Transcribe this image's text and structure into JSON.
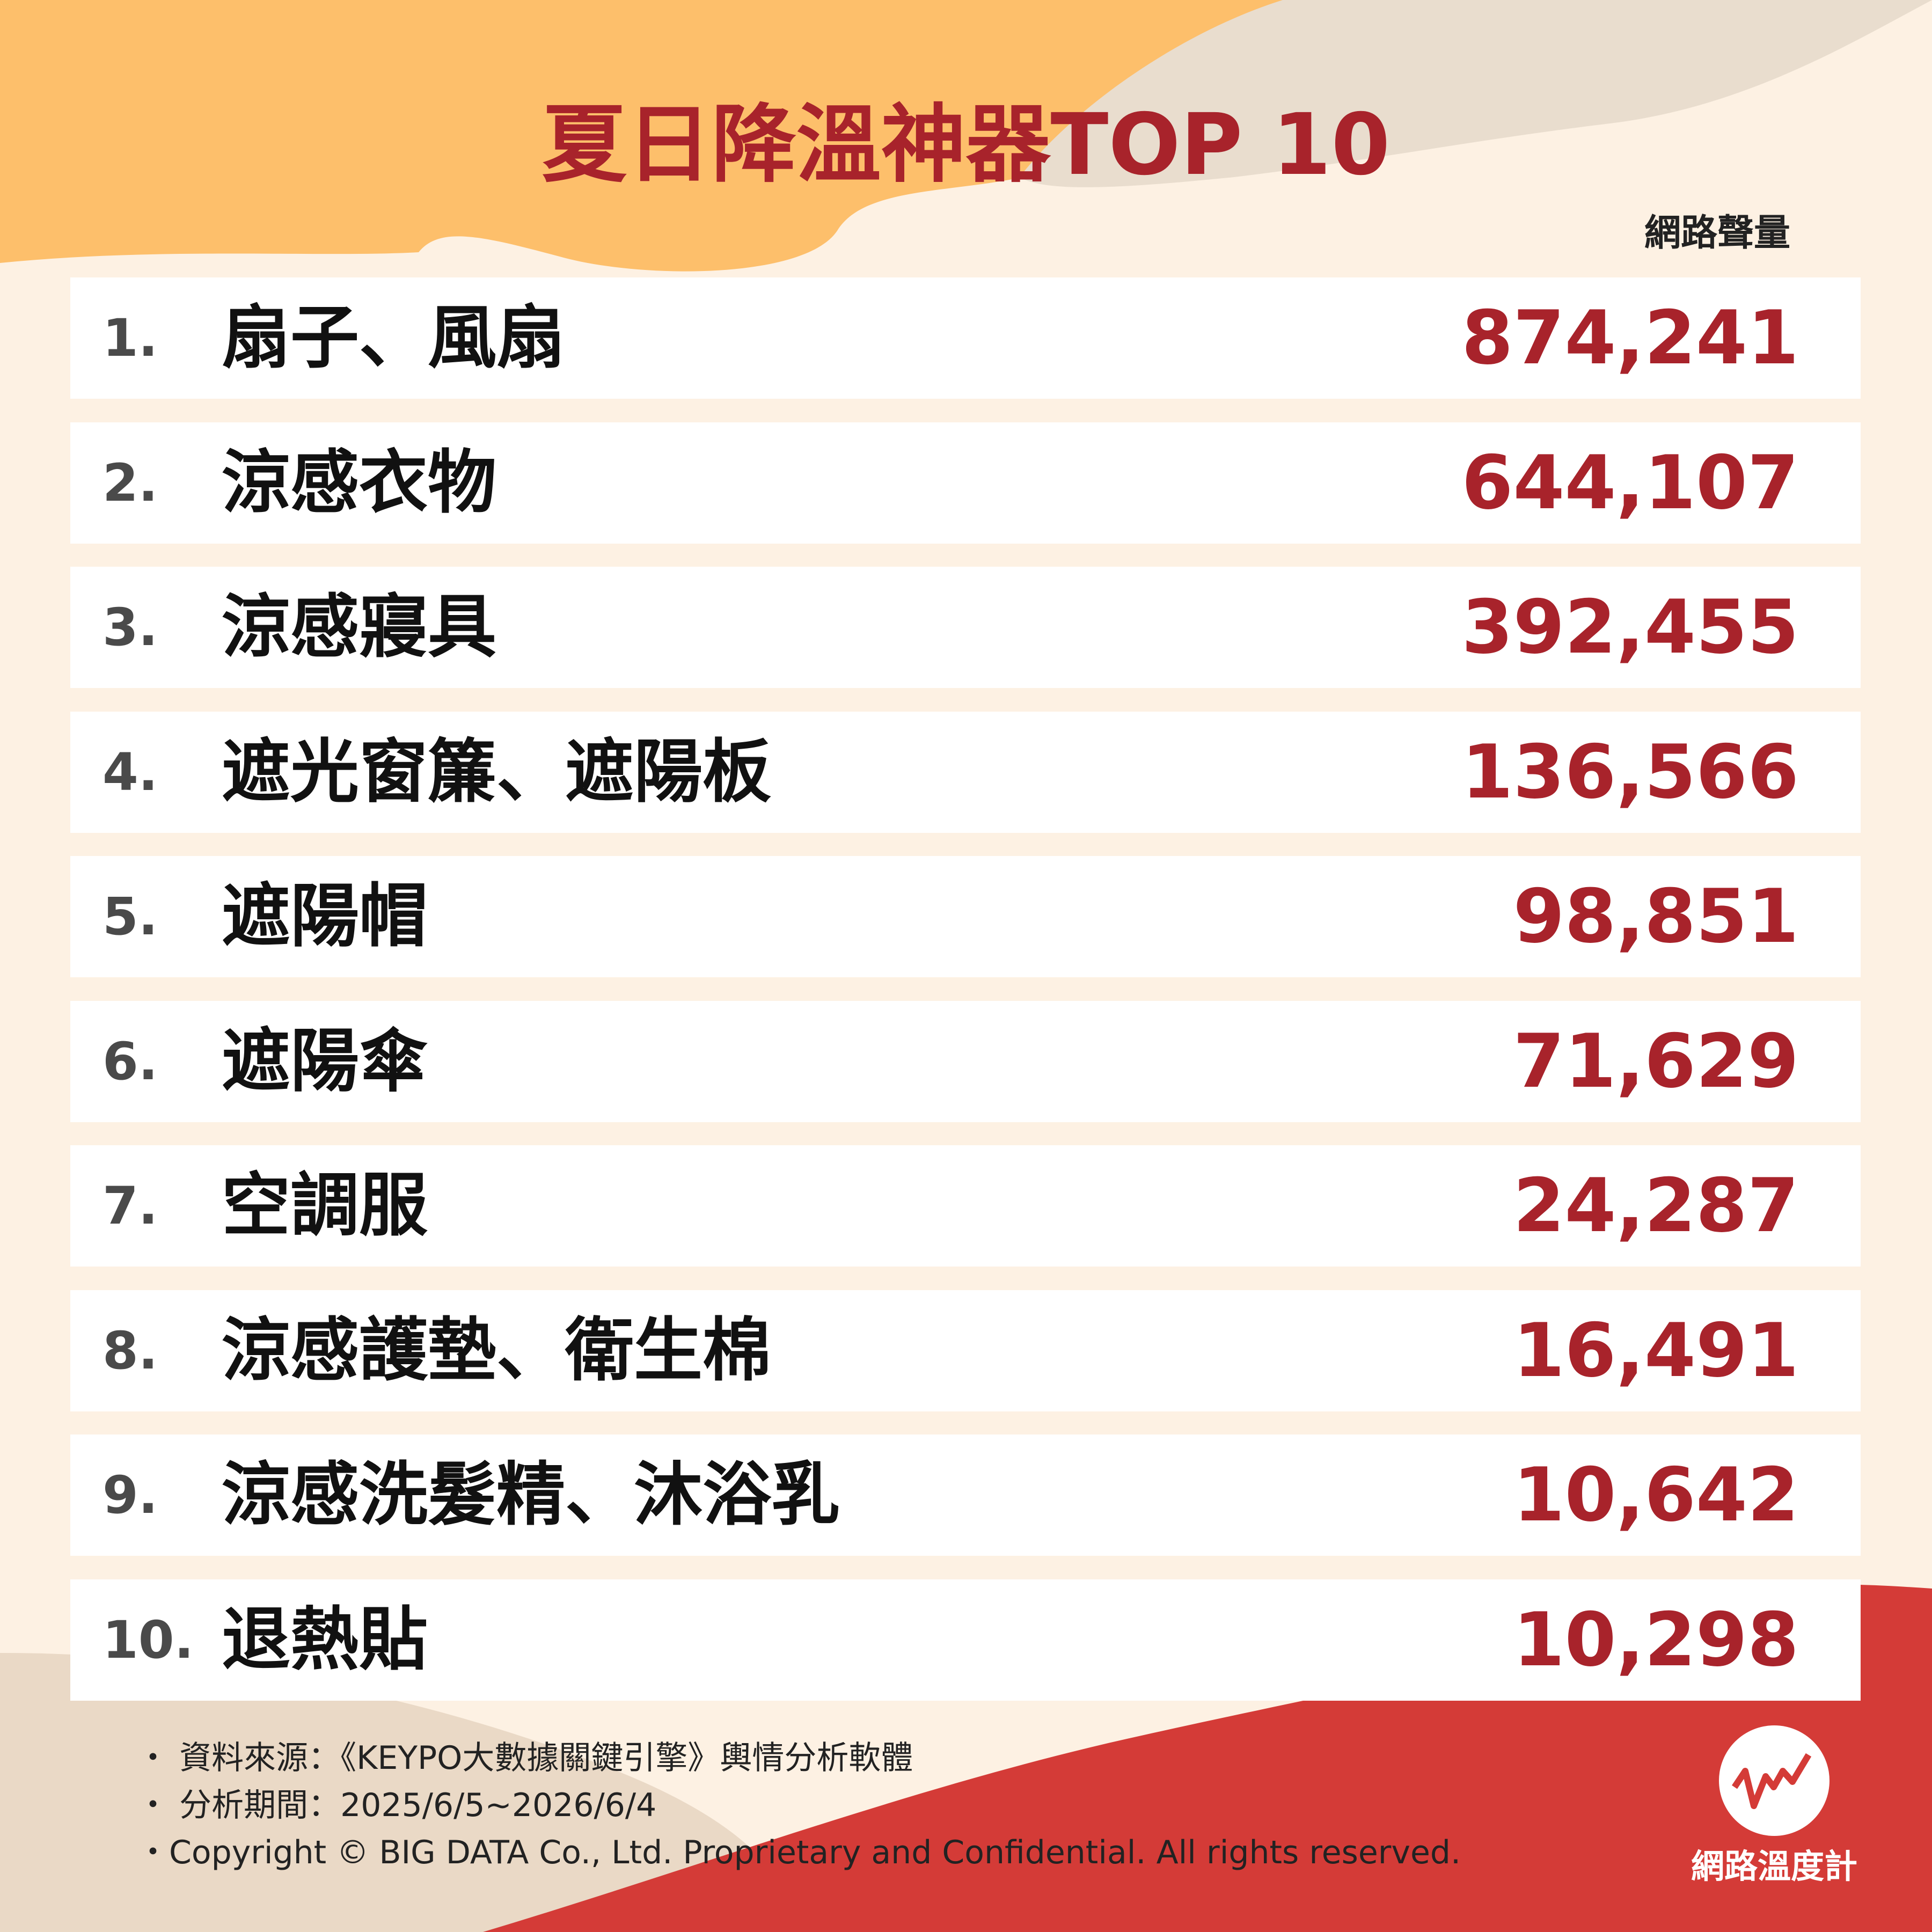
{
  "header": {
    "title": "夏日降溫神器TOP 10",
    "column_label": "網路聲量"
  },
  "table": {
    "rows": [
      [
        "1.",
        "扇子、風扇",
        "874,241"
      ],
      [
        "2.",
        "涼感衣物",
        "644,107"
      ],
      [
        "3.",
        "涼感寢具",
        "392,455"
      ],
      [
        "4.",
        "遮光窗簾、遮陽板",
        "136,566"
      ],
      [
        "5.",
        "遮陽帽",
        "98,851"
      ],
      [
        "6.",
        "遮陽傘",
        "71,629"
      ],
      [
        "7.",
        "空調服",
        "24,287"
      ],
      [
        "8.",
        "涼感護墊、衛生棉",
        "16,491"
      ],
      [
        "9.",
        "涼感洗髮精、沐浴乳",
        "10,642"
      ],
      [
        "10.",
        "退熱貼",
        "10,298"
      ]
    ]
  },
  "footer": {
    "notes": [
      "・ 資料來源：《KEYPO大數據關鍵引擎》輿情分析軟體",
      "・ 分析期間：2025/6/5~2026/6/4",
      "・Copyright © BIG DATA Co., Ltd. Proprietary and Confidential. All rights reserved."
    ]
  },
  "logo": {
    "label": "網路溫度計"
  }
}
